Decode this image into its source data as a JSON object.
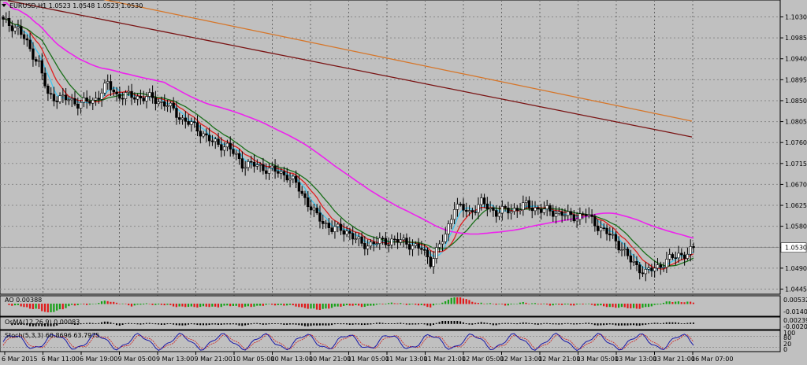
{
  "chart_data": {
    "type": "candlestick",
    "symbol_line": "EURUSD,H1  1.0523 1.0548 1.0523 1.0530",
    "price_axis_ticks": [
      "1.1030",
      "1.0985",
      "1.0940",
      "1.0895",
      "1.0850",
      "1.0805",
      "1.0760",
      "1.0715",
      "1.0670",
      "1.0625",
      "1.0580",
      "1.0535",
      "1.0490",
      "1.0445"
    ],
    "current_price_label": "1.0530",
    "ylim": [
      1.0445,
      1.103
    ],
    "time_labels": [
      "6 Mar 2015",
      "6 Mar 11:00",
      "6 Mar 19:00",
      "9 Mar 05:00",
      "9 Mar 13:00",
      "9 Mar 21:00",
      "10 Mar 05:00",
      "10 Mar 13:00",
      "10 Mar 21:00",
      "11 Mar 05:00",
      "11 Mar 13:00",
      "11 Mar 21:00",
      "12 Mar 05:00",
      "12 Mar 13:00",
      "12 Mar 21:00",
      "13 Mar 05:00",
      "13 Mar 13:00",
      "13 Mar 21:00",
      "16 Mar 07:00"
    ],
    "close_anchors": [
      [
        0,
        1.102
      ],
      [
        5,
        1.1005
      ],
      [
        9,
        1.096
      ],
      [
        12,
        1.093
      ],
      [
        15,
        1.086
      ],
      [
        20,
        1.0855
      ],
      [
        25,
        1.0845
      ],
      [
        30,
        1.0848
      ],
      [
        35,
        1.0885
      ],
      [
        38,
        1.0862
      ],
      [
        45,
        1.0858
      ],
      [
        50,
        1.0855
      ],
      [
        55,
        1.084
      ],
      [
        60,
        1.081
      ],
      [
        65,
        1.079
      ],
      [
        70,
        1.076
      ],
      [
        75,
        1.0752
      ],
      [
        80,
        1.0715
      ],
      [
        85,
        1.071
      ],
      [
        90,
        1.07
      ],
      [
        95,
        1.069
      ],
      [
        98,
        1.067
      ],
      [
        100,
        1.065
      ],
      [
        105,
        1.06
      ],
      [
        110,
        1.0575
      ],
      [
        115,
        1.057
      ],
      [
        120,
        1.054
      ],
      [
        125,
        1.0545
      ],
      [
        130,
        1.055
      ],
      [
        135,
        1.0545
      ],
      [
        140,
        1.053
      ],
      [
        143,
        1.0505
      ],
      [
        148,
        1.056
      ],
      [
        151,
        1.0625
      ],
      [
        156,
        1.061
      ],
      [
        160,
        1.063
      ],
      [
        165,
        1.061
      ],
      [
        170,
        1.0615
      ],
      [
        175,
        1.0625
      ],
      [
        180,
        1.0615
      ],
      [
        185,
        1.061
      ],
      [
        190,
        1.06
      ],
      [
        195,
        1.0605
      ],
      [
        200,
        1.0575
      ],
      [
        205,
        1.055
      ],
      [
        210,
        1.0505
      ],
      [
        215,
        1.048
      ],
      [
        218,
        1.049
      ],
      [
        222,
        1.0505
      ],
      [
        226,
        1.052
      ],
      [
        229,
        1.052
      ],
      [
        231,
        1.053
      ]
    ],
    "moving_averages": [
      {
        "id": "ma_blue",
        "color": "#42c6f0",
        "period": 5
      },
      {
        "id": "ma_red",
        "color": "#e02020",
        "period": 9
      },
      {
        "id": "ma_green",
        "color": "#1a6f1a",
        "period": 14
      },
      {
        "id": "ma_magenta",
        "color": "#ee22ee",
        "period": 55
      },
      {
        "id": "ma_maroon",
        "start": 1.1065,
        "end": 1.0772,
        "color": "#7a1414"
      },
      {
        "id": "ma_orange",
        "start": 1.111,
        "end": 1.0806,
        "color": "#d6762a"
      }
    ],
    "sub_windows": [
      {
        "id": "ao",
        "label": "AO 0.00388",
        "axis_labels": [
          "0.00532",
          "-0.01408"
        ],
        "type": "histogram",
        "colors": {
          "up": "#16a016",
          "down": "#e01818"
        }
      },
      {
        "id": "osma",
        "label": "OsMA(12,26,9) 0.00083",
        "axis_labels": [
          "0.00239",
          "-0.00203"
        ],
        "type": "histogram",
        "colors": {
          "bar": "#000000"
        }
      },
      {
        "id": "stoch",
        "label": "Stoch(5,3,3) 60.8696 63.7975",
        "axis_labels": [
          "100",
          "80",
          "20",
          "0"
        ],
        "type": "line",
        "colors": {
          "main": "#1a1aa8",
          "signal": "#d02020"
        }
      }
    ]
  }
}
